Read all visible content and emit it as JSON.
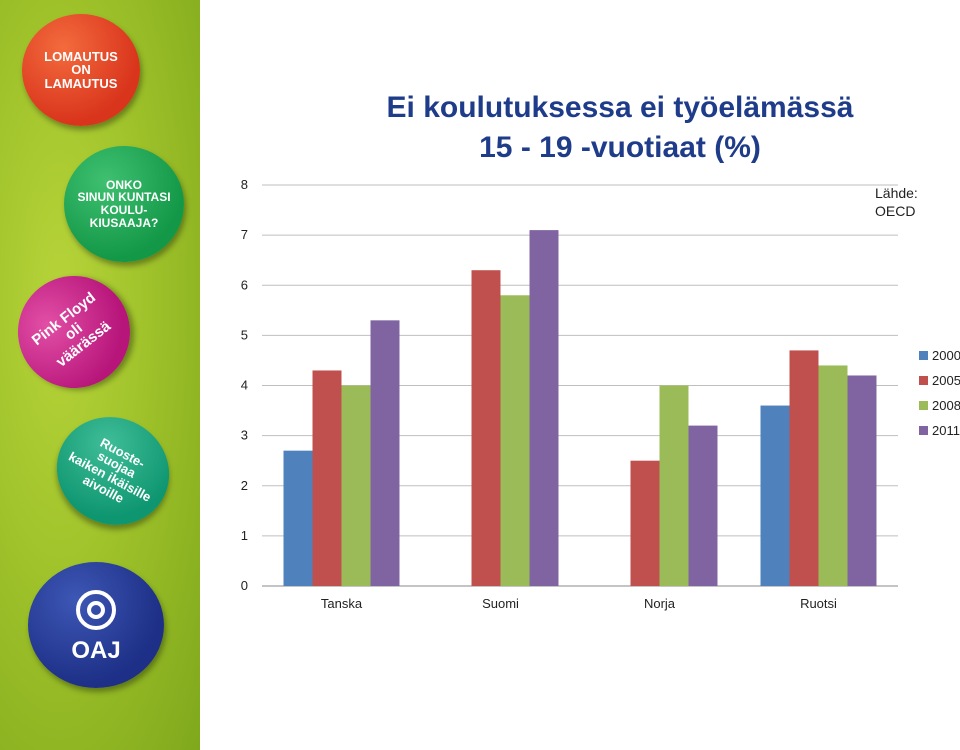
{
  "sidebar": {
    "badges": [
      {
        "text": "LOMAUTUS\nON\nLAMAUTUS",
        "color": "#d9341c"
      },
      {
        "text": "ONKO\nSINUN KUNTASI\nKOULU-\nKIUSAAJA?",
        "color": "#139848"
      },
      {
        "text": "Pink Floyd\noli\nväärässä",
        "color": "#b7157a"
      },
      {
        "text": "Ruoste-\nsuojaa\nkaiken ikäisille\naivoille",
        "color": "#0e9670"
      },
      {
        "text": "OAJ",
        "color": "#1d2f86"
      }
    ]
  },
  "title_line1": "Ei koulutuksessa ei työelämässä",
  "title_line2": "15 - 19 -vuotiaat (%)",
  "source_line1": "Lähde:",
  "source_line2": "OECD",
  "chart_data": {
    "type": "bar",
    "title": "Ei koulutuksessa ei työelämässä 15 - 19 -vuotiaat (%)",
    "categories": [
      "Tanska",
      "Suomi",
      "Norja",
      "Ruotsi"
    ],
    "series": [
      {
        "name": "2000",
        "color": "#4f81bd",
        "values": [
          2.7,
          null,
          null,
          3.6
        ]
      },
      {
        "name": "2005",
        "color": "#c0504d",
        "values": [
          4.3,
          6.3,
          2.5,
          4.7
        ]
      },
      {
        "name": "2008",
        "color": "#9bbb59",
        "values": [
          4.0,
          5.8,
          4.0,
          4.4
        ]
      },
      {
        "name": "2011",
        "color": "#8064a2",
        "values": [
          5.3,
          7.1,
          3.2,
          4.2
        ]
      }
    ],
    "ylim": [
      0,
      8
    ],
    "yticks": [
      "0",
      "1",
      "2",
      "3",
      "4",
      "5",
      "6",
      "7",
      "8"
    ],
    "grid": true,
    "legend": "right"
  }
}
